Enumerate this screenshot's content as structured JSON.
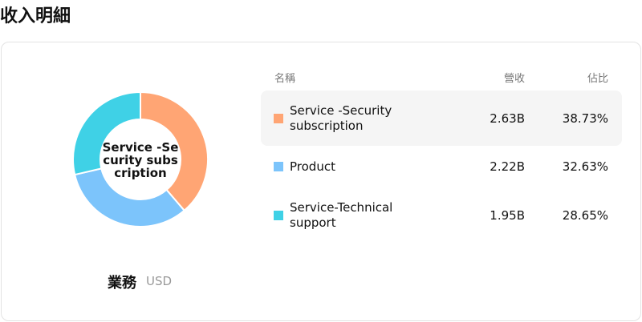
{
  "header": {
    "title": "收入明細"
  },
  "chart_data": {
    "type": "pie",
    "donut": true,
    "center_label": "Service -Security subscription",
    "title": "業務",
    "unit": "USD",
    "categories": [
      "Service -Security subscription",
      "Product",
      "Service-Technical support"
    ],
    "values": [
      38.73,
      32.63,
      28.65
    ],
    "value_labels": [
      "38.73%",
      "32.63%",
      "28.65%"
    ],
    "colors": [
      "#ffa574",
      "#7cc4fb",
      "#3fd1e6"
    ]
  },
  "table": {
    "columns": [
      "名稱",
      "營收",
      "佔比"
    ],
    "revenue": [
      "2.63B",
      "2.22B",
      "1.95B"
    ]
  }
}
